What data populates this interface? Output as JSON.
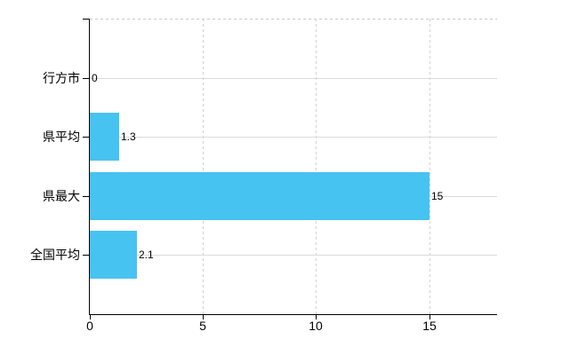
{
  "chart_data": {
    "type": "bar",
    "orientation": "horizontal",
    "title": "",
    "xlabel": "",
    "ylabel": "",
    "categories": [
      "行方市",
      "県平均",
      "県最大",
      "全国平均"
    ],
    "values": [
      0,
      1.3,
      15,
      2.1
    ],
    "value_labels": [
      "0",
      "1.3",
      "15",
      "2.1"
    ],
    "xticks": [
      0,
      5,
      10,
      15
    ],
    "xtick_labels": [
      "0",
      "5",
      "10",
      "15"
    ],
    "xlim": [
      0,
      18
    ],
    "grid": true,
    "legend": false
  },
  "colors": {
    "bar": "#47c3f1",
    "axis": "#000000",
    "text": "#000000",
    "gridline_horizontal": "#d6ddd6",
    "gridline_vertical": "#d6ced7",
    "top_border": "#c9c9c9",
    "background": "#ffffff"
  }
}
